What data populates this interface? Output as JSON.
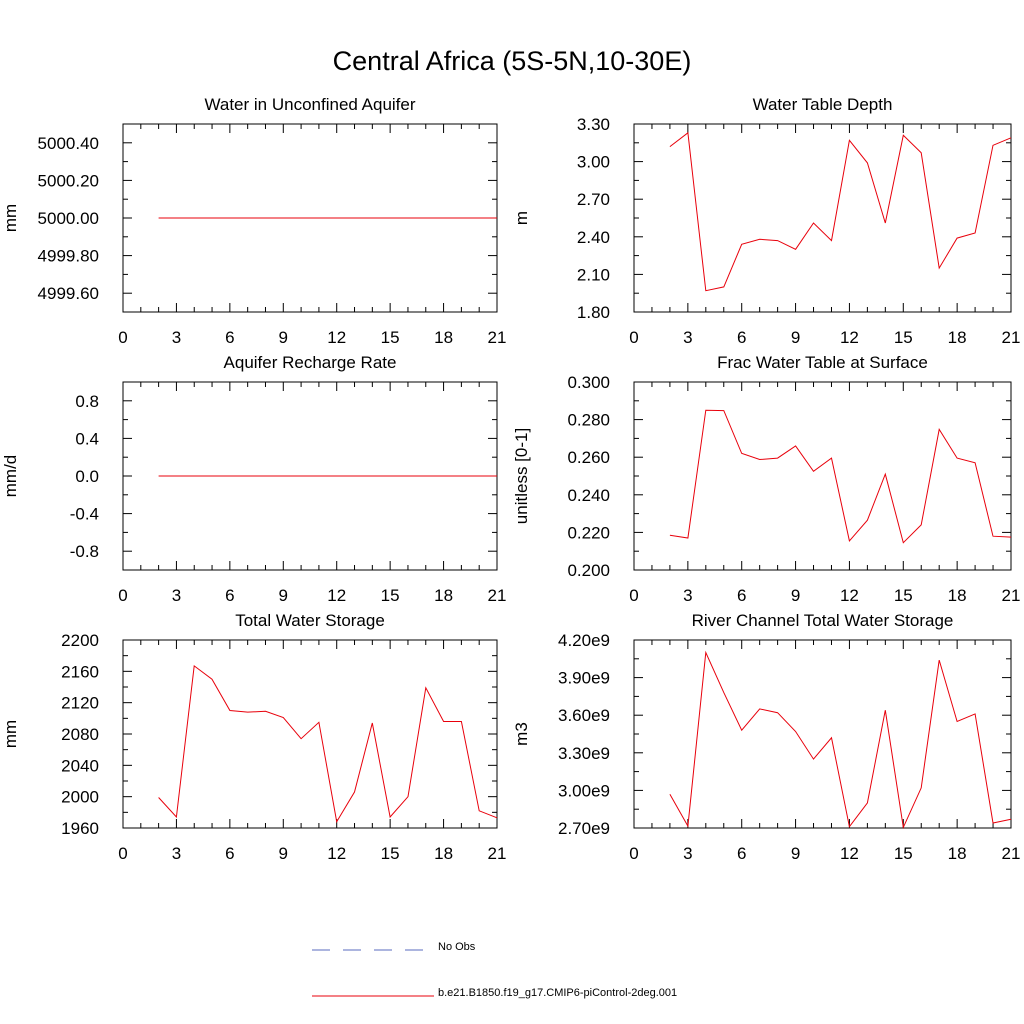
{
  "title": "Central Africa (5S-5N,10-30E)",
  "legend": {
    "entries": [
      {
        "label": "No Obs",
        "style": "dashed",
        "color": "#5a6bbf"
      },
      {
        "label": "b.e21.B1850.f19_g17.CMIP6-piControl-2deg.001",
        "style": "solid",
        "color": "#e8000b"
      }
    ]
  },
  "chart_data": [
    {
      "type": "line",
      "title": "Water in Unconfined Aquifer",
      "ylabel": "mm",
      "xlim": [
        0,
        21
      ],
      "xticks": [
        "0",
        "3",
        "6",
        "9",
        "12",
        "15",
        "18",
        "21"
      ],
      "ylim": [
        4999.5,
        5000.5
      ],
      "yticks": [
        "4999.60",
        "4999.80",
        "5000.00",
        "5000.20",
        "5000.40"
      ],
      "yticks_values": [
        4999.6,
        4999.8,
        5000.0,
        5000.2,
        5000.4
      ],
      "x": [
        2,
        3,
        4,
        5,
        6,
        7,
        8,
        9,
        10,
        11,
        12,
        13,
        14,
        15,
        16,
        17,
        18,
        19,
        20,
        21
      ],
      "series": [
        {
          "values": [
            5000,
            5000,
            5000,
            5000,
            5000,
            5000,
            5000,
            5000,
            5000,
            5000,
            5000,
            5000,
            5000,
            5000,
            5000,
            5000,
            5000,
            5000,
            5000,
            5000
          ],
          "color": "#e8000b"
        }
      ]
    },
    {
      "type": "line",
      "title": "Water Table Depth",
      "ylabel": "m",
      "xlim": [
        0,
        21
      ],
      "xticks": [
        "0",
        "3",
        "6",
        "9",
        "12",
        "15",
        "18",
        "21"
      ],
      "ylim": [
        1.8,
        3.3
      ],
      "yticks": [
        "1.80",
        "2.10",
        "2.40",
        "2.70",
        "3.00",
        "3.30"
      ],
      "yticks_values": [
        1.8,
        2.1,
        2.4,
        2.7,
        3.0,
        3.3
      ],
      "x": [
        2,
        3,
        4,
        5,
        6,
        7,
        8,
        9,
        10,
        11,
        12,
        13,
        14,
        15,
        16,
        17,
        18,
        19,
        20,
        21
      ],
      "series": [
        {
          "values": [
            3.12,
            3.23,
            1.97,
            2.0,
            2.34,
            2.38,
            2.37,
            2.3,
            2.51,
            2.37,
            3.17,
            2.99,
            2.51,
            3.21,
            3.07,
            2.15,
            2.39,
            2.43,
            3.13,
            3.19
          ],
          "color": "#e8000b"
        }
      ]
    },
    {
      "type": "line",
      "title": "Aquifer Recharge Rate",
      "ylabel": "mm/d",
      "xlim": [
        0,
        21
      ],
      "xticks": [
        "0",
        "3",
        "6",
        "9",
        "12",
        "15",
        "18",
        "21"
      ],
      "ylim": [
        -1,
        1
      ],
      "yticks": [
        "-0.8",
        "-0.4",
        "0.0",
        "0.4",
        "0.8"
      ],
      "yticks_values": [
        -0.8,
        -0.4,
        0.0,
        0.4,
        0.8
      ],
      "x": [
        2,
        3,
        4,
        5,
        6,
        7,
        8,
        9,
        10,
        11,
        12,
        13,
        14,
        15,
        16,
        17,
        18,
        19,
        20,
        21
      ],
      "series": [
        {
          "values": [
            0,
            0,
            0,
            0,
            0,
            0,
            0,
            0,
            0,
            0,
            0,
            0,
            0,
            0,
            0,
            0,
            0,
            0,
            0,
            0
          ],
          "color": "#e8000b"
        }
      ]
    },
    {
      "type": "line",
      "title": "Frac Water Table at Surface",
      "ylabel": "unitless [0-1]",
      "xlim": [
        0,
        21
      ],
      "xticks": [
        "0",
        "3",
        "6",
        "9",
        "12",
        "15",
        "18",
        "21"
      ],
      "ylim": [
        0.2,
        0.3
      ],
      "yticks": [
        "0.200",
        "0.220",
        "0.240",
        "0.260",
        "0.280",
        "0.300"
      ],
      "yticks_values": [
        0.2,
        0.22,
        0.24,
        0.26,
        0.28,
        0.3
      ],
      "x": [
        2,
        3,
        4,
        5,
        6,
        7,
        8,
        9,
        10,
        11,
        12,
        13,
        14,
        15,
        16,
        17,
        18,
        19,
        20,
        21
      ],
      "series": [
        {
          "values": [
            0.2185,
            0.217,
            0.285,
            0.2848,
            0.262,
            0.2588,
            0.2595,
            0.266,
            0.2525,
            0.2595,
            0.2155,
            0.2265,
            0.251,
            0.2145,
            0.224,
            0.2748,
            0.2595,
            0.257,
            0.218,
            0.2175
          ],
          "color": "#e8000b"
        }
      ]
    },
    {
      "type": "line",
      "title": "Total Water Storage",
      "ylabel": "mm",
      "xlim": [
        0,
        21
      ],
      "xticks": [
        "0",
        "3",
        "6",
        "9",
        "12",
        "15",
        "18",
        "21"
      ],
      "ylim": [
        1960,
        2200
      ],
      "yticks": [
        "1960",
        "2000",
        "2040",
        "2080",
        "2120",
        "2160",
        "2200"
      ],
      "yticks_values": [
        1960,
        2000,
        2040,
        2080,
        2120,
        2160,
        2200
      ],
      "x": [
        2,
        3,
        4,
        5,
        6,
        7,
        8,
        9,
        10,
        11,
        12,
        13,
        14,
        15,
        16,
        17,
        18,
        19,
        20,
        21
      ],
      "series": [
        {
          "values": [
            1999,
            1974,
            2167,
            2150,
            2110,
            2108,
            2109,
            2101,
            2074,
            2095,
            1968,
            2006,
            2094,
            1974,
            2000,
            2139,
            2096,
            2096,
            1982,
            1973
          ],
          "color": "#e8000b"
        }
      ]
    },
    {
      "type": "line",
      "title": "River Channel Total Water Storage",
      "ylabel": "m3",
      "xlim": [
        0,
        21
      ],
      "xticks": [
        "0",
        "3",
        "6",
        "9",
        "12",
        "15",
        "18",
        "21"
      ],
      "ylim": [
        2700000000,
        4200000000
      ],
      "yticks": [
        "2.70e9",
        "3.00e9",
        "3.30e9",
        "3.60e9",
        "3.90e9",
        "4.20e9"
      ],
      "yticks_values": [
        2700000000,
        3000000000,
        3300000000,
        3600000000,
        3900000000,
        4200000000
      ],
      "x": [
        2,
        3,
        4,
        5,
        6,
        7,
        8,
        9,
        10,
        11,
        12,
        13,
        14,
        15,
        16,
        17,
        18,
        19,
        20,
        21
      ],
      "series": [
        {
          "values": [
            2970000000,
            2715000000,
            4100000000,
            3780000000,
            3480000000,
            3650000000,
            3620000000,
            3470000000,
            3250000000,
            3420000000,
            2710000000,
            2900000000,
            3640000000,
            2705000000,
            3020000000,
            4040000000,
            3550000000,
            3610000000,
            2740000000,
            2770000000
          ],
          "color": "#e8000b"
        }
      ]
    }
  ]
}
